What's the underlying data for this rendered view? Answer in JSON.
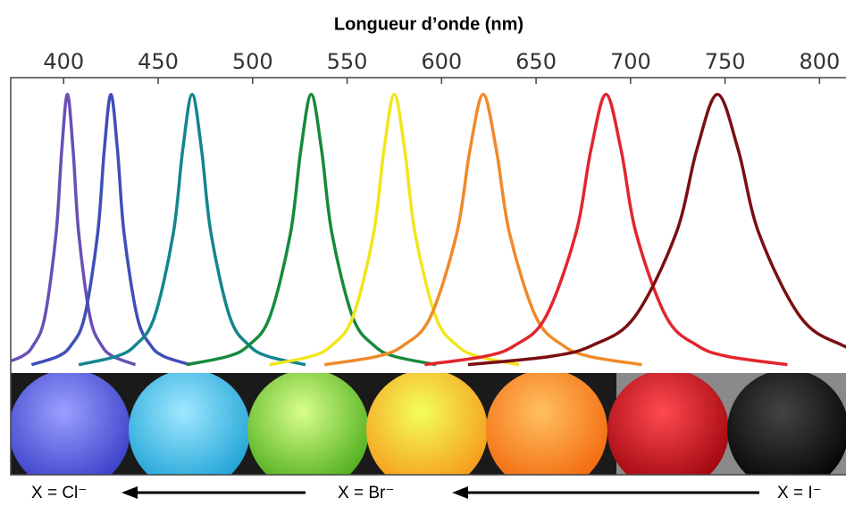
{
  "chart_data": {
    "type": "line",
    "title": "Longueur d’onde (nm)",
    "xlim": [
      372,
      814
    ],
    "ylim": [
      0,
      1.06
    ],
    "xticks": [
      400,
      450,
      500,
      550,
      600,
      650,
      700,
      750,
      800
    ],
    "series": [
      {
        "color": "#6a4fb5",
        "x": [
          366,
          378,
          384,
          390,
          396,
          399,
          402,
          405,
          408,
          414,
          420,
          426,
          438
        ],
        "values": [
          0.03,
          0.06,
          0.1,
          0.2,
          0.5,
          0.8,
          1,
          0.8,
          0.5,
          0.2,
          0.1,
          0.06,
          0.03
        ]
      },
      {
        "color": "#3f4fb8",
        "x": [
          383,
          397,
          404,
          411,
          418,
          421.5,
          425,
          428.5,
          432,
          439,
          446,
          453,
          467
        ],
        "values": [
          0.03,
          0.06,
          0.1,
          0.2,
          0.5,
          0.8,
          1,
          0.8,
          0.5,
          0.2,
          0.1,
          0.06,
          0.03
        ]
      },
      {
        "color": "#14858f",
        "x": [
          408,
          428,
          438,
          448,
          458,
          463,
          468,
          473,
          478,
          488,
          498,
          508,
          528
        ],
        "values": [
          0.03,
          0.06,
          0.1,
          0.2,
          0.5,
          0.8,
          1,
          0.8,
          0.5,
          0.2,
          0.1,
          0.06,
          0.03
        ]
      },
      {
        "color": "#168a3c",
        "x": [
          465,
          487,
          498,
          509,
          520,
          525.5,
          531,
          536.5,
          542,
          553,
          564,
          575,
          597
        ],
        "values": [
          0.03,
          0.06,
          0.1,
          0.2,
          0.5,
          0.8,
          1,
          0.8,
          0.5,
          0.2,
          0.1,
          0.06,
          0.03
        ]
      },
      {
        "color": "#f2e51c",
        "x": [
          509,
          531,
          542,
          553,
          564,
          569.5,
          575,
          580.5,
          586,
          597,
          608,
          619,
          641
        ],
        "values": [
          0.03,
          0.06,
          0.1,
          0.2,
          0.5,
          0.8,
          1,
          0.8,
          0.5,
          0.2,
          0.1,
          0.06,
          0.03
        ]
      },
      {
        "color": "#ef8a2a",
        "x": [
          538,
          566,
          580,
          594,
          608,
          615,
          622,
          629,
          636,
          650,
          664,
          678,
          706
        ],
        "values": [
          0.03,
          0.06,
          0.1,
          0.2,
          0.5,
          0.8,
          1,
          0.8,
          0.5,
          0.2,
          0.1,
          0.06,
          0.03
        ]
      },
      {
        "color": "#e2262e",
        "x": [
          591,
          623,
          639,
          655,
          671,
          679,
          687,
          695,
          703,
          719,
          735,
          751,
          783
        ],
        "values": [
          0.03,
          0.06,
          0.1,
          0.2,
          0.5,
          0.8,
          1,
          0.8,
          0.5,
          0.2,
          0.1,
          0.06,
          0.03
        ]
      },
      {
        "color": "#7a0f12",
        "x": [
          614,
          658,
          680,
          702,
          724,
          735,
          746,
          757,
          768,
          790,
          812,
          834,
          878
        ],
        "values": [
          0.03,
          0.06,
          0.1,
          0.2,
          0.5,
          0.8,
          1,
          0.8,
          0.5,
          0.2,
          0.1,
          0.06,
          0.03
        ]
      }
    ],
    "annotations": [
      "X = Cl⁻",
      "X = Br⁻",
      "X = I⁻"
    ]
  }
}
